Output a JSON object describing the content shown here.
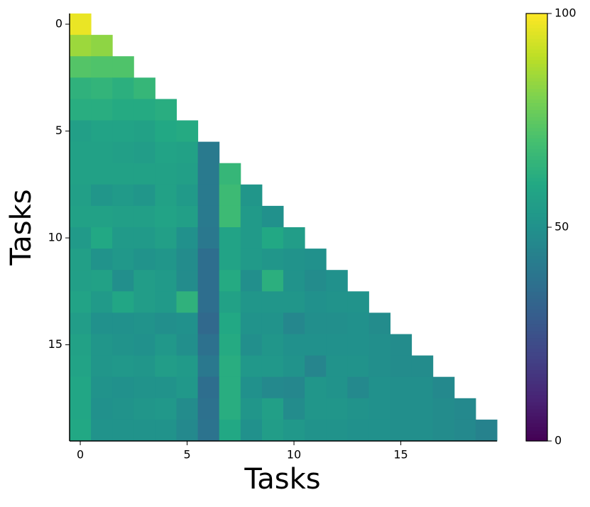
{
  "chart_data": {
    "type": "heatmap",
    "colormap": "viridis",
    "x_label": "Tasks",
    "y_label": "Tasks",
    "xlim": [
      -0.5,
      19.5
    ],
    "ylim": [
      19.5,
      -0.5
    ],
    "xticks": [
      0,
      5,
      10,
      15
    ],
    "yticks": [
      0,
      5,
      10,
      15
    ],
    "matrix": [
      [
        97
      ],
      [
        85,
        83
      ],
      [
        73,
        72,
        72
      ],
      [
        64,
        65,
        63,
        66
      ],
      [
        62,
        62,
        61,
        61,
        62
      ],
      [
        56,
        58,
        58,
        57,
        60,
        61
      ],
      [
        57,
        57,
        56,
        55,
        58,
        57,
        41
      ],
      [
        57,
        57,
        57,
        57,
        57,
        56,
        41,
        66
      ],
      [
        56,
        52,
        54,
        52,
        57,
        54,
        41,
        68,
        52
      ],
      [
        57,
        57,
        56,
        56,
        58,
        56,
        41,
        68,
        54,
        50
      ],
      [
        54,
        60,
        54,
        54,
        56,
        50,
        40,
        58,
        54,
        60,
        55
      ],
      [
        56,
        51,
        53,
        51,
        52,
        48,
        36,
        58,
        54,
        52,
        51,
        50
      ],
      [
        56,
        57,
        49,
        55,
        54,
        48,
        36,
        61,
        49,
        63,
        51,
        48,
        50
      ],
      [
        58,
        54,
        59,
        55,
        54,
        64,
        36,
        57,
        52,
        52,
        52,
        50,
        51,
        51
      ],
      [
        55,
        50,
        50,
        51,
        49,
        50,
        34,
        60,
        51,
        51,
        46,
        49,
        49,
        50,
        48
      ],
      [
        57,
        52,
        51,
        50,
        53,
        49,
        37,
        61,
        49,
        52,
        50,
        50,
        50,
        50,
        49,
        48
      ],
      [
        58,
        52,
        53,
        52,
        55,
        54,
        40,
        62,
        53,
        53,
        51,
        45,
        51,
        51,
        49,
        48,
        48
      ],
      [
        59,
        51,
        50,
        51,
        51,
        53,
        36,
        62,
        50,
        47,
        46,
        52,
        51,
        47,
        50,
        49,
        49,
        47
      ],
      [
        59,
        50,
        51,
        52,
        53,
        48,
        37,
        62,
        52,
        56,
        48,
        52,
        52,
        51,
        50,
        49,
        49,
        48,
        47
      ],
      [
        60,
        51,
        51,
        51,
        51,
        47,
        38,
        60,
        50,
        55,
        53,
        51,
        51,
        50,
        50,
        49,
        49,
        48,
        47,
        44
      ]
    ],
    "colorbar": {
      "lim": [
        0,
        100
      ],
      "ticks": [
        0,
        50,
        100
      ]
    }
  }
}
